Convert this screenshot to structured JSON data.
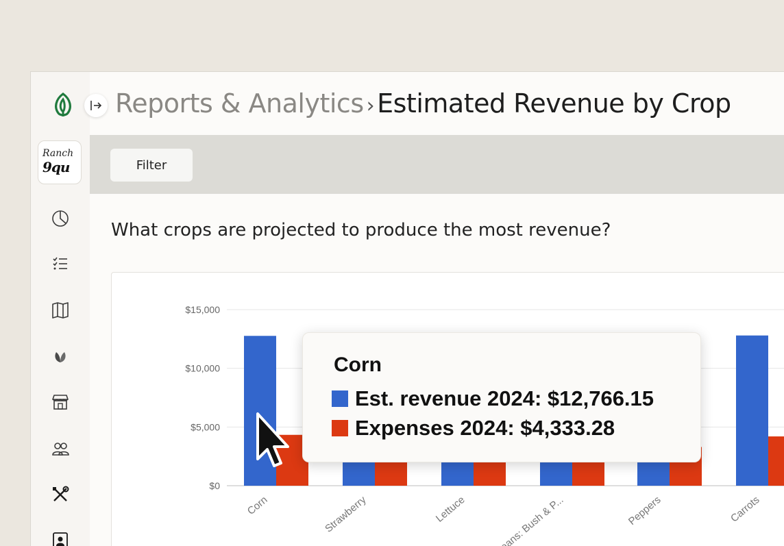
{
  "header": {
    "parent": "Reports & Analytics",
    "separator": "›",
    "current": "Estimated Revenue by Crop"
  },
  "sidebar": {
    "logo_icon": "leaf-logo-icon",
    "collapse_icon": "sidebar-expand-icon",
    "farm_logo_line1": "Ranch",
    "farm_logo_line2": "9qu",
    "items": [
      {
        "icon": "reports-pie-icon"
      },
      {
        "icon": "tasks-list-icon"
      },
      {
        "icon": "map-icon"
      },
      {
        "icon": "crops-leaf-icon"
      },
      {
        "icon": "store-icon"
      },
      {
        "icon": "people-icon"
      },
      {
        "icon": "tools-icon"
      },
      {
        "icon": "contacts-icon"
      }
    ]
  },
  "filter": {
    "label": "Filter"
  },
  "question": "What crops are projected to produce the most revenue?",
  "colors": {
    "revenue": "#3366cc",
    "expenses": "#dc3912"
  },
  "chart_data": {
    "type": "bar",
    "categories": [
      "Corn",
      "Strawberry",
      "Lettuce",
      "Beans: Bush & P...",
      "Peppers",
      "Carrots"
    ],
    "series": [
      {
        "name": "Est. revenue 2024",
        "values": [
          12766.15,
          4200,
          4200,
          4300,
          4100,
          12800
        ]
      },
      {
        "name": "Expenses 2024",
        "values": [
          4333.28,
          3600,
          3500,
          3800,
          3300,
          4200
        ]
      }
    ],
    "y_ticks": [
      "$15,000",
      "$10,000",
      "$5,000",
      "$0"
    ],
    "ylim": [
      0,
      15000
    ],
    "grid": true
  },
  "tooltip": {
    "title": "Corn",
    "revenue_label": "Est. revenue 2024: $12,766.15",
    "expenses_label": "Expenses 2024: $4,333.28"
  }
}
